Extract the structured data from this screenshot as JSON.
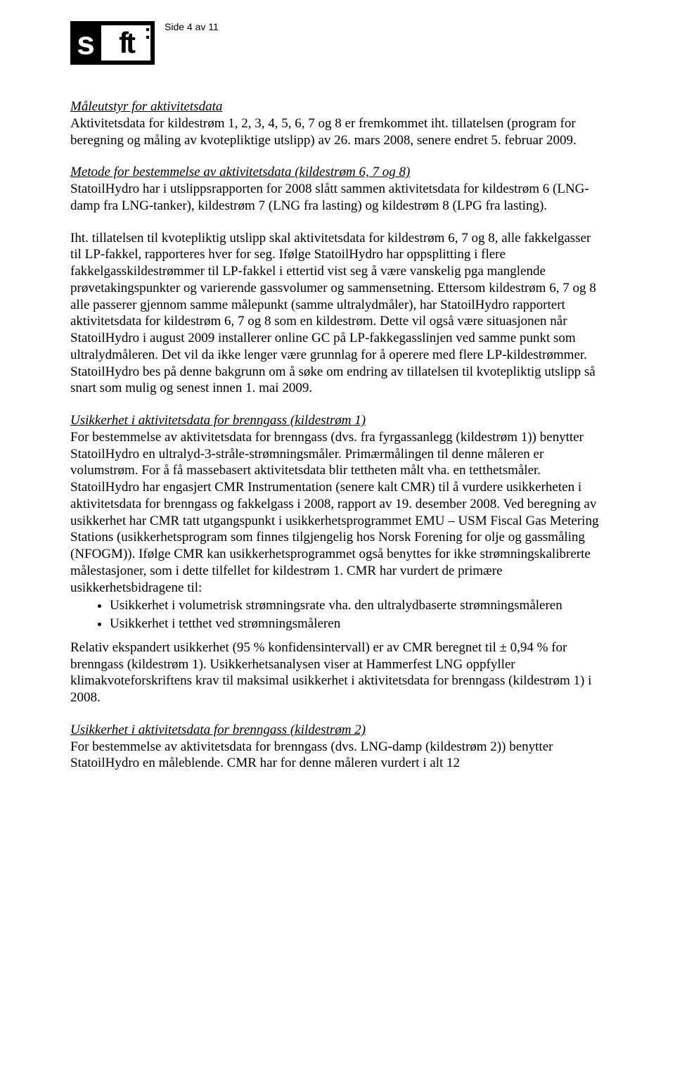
{
  "header": {
    "page_indicator": "Side 4 av 11",
    "logo_s": "s",
    "logo_ft": "ft",
    "logo_colon": ":"
  },
  "section1": {
    "title": "Måleutstyr for aktivitetsdata",
    "body": "Aktivitetsdata for kildestrøm 1, 2, 3, 4, 5, 6, 7 og 8 er fremkommet iht. tillatelsen (program for beregning og måling av kvotepliktige utslipp) av 26. mars 2008, senere endret 5. februar 2009."
  },
  "section2": {
    "title": "Metode for bestemmelse av aktivitetsdata (kildestrøm 6, 7 og 8)",
    "body1": "StatoilHydro har i utslippsrapporten for 2008 slått sammen aktivitetsdata for kildestrøm 6 (LNG-damp fra LNG-tanker), kildestrøm 7 (LNG fra lasting) og kildestrøm 8 (LPG fra lasting).",
    "body2": "Iht. tillatelsen til kvotepliktig utslipp skal aktivitetsdata for kildestrøm 6, 7 og 8, alle fakkelgasser til LP-fakkel, rapporteres hver for seg. Ifølge StatoilHydro har oppsplitting i flere fakkelgasskildestrømmer til LP-fakkel i ettertid vist seg å være vanskelig pga manglende prøvetakingspunkter og varierende gassvolumer og sammensetning. Ettersom kildestrøm 6, 7 og 8 alle passerer gjennom samme målepunkt (samme ultralydmåler), har StatoilHydro rapportert aktivitetsdata for kildestrøm 6, 7 og 8 som en kildestrøm. Dette vil også være situasjonen når StatoilHydro i august 2009 installerer online GC på LP-fakkegasslinjen ved samme punkt som ultralydmåleren. Det vil da ikke lenger være grunnlag for å operere med flere LP-kildestrømmer. StatoilHydro bes på denne bakgrunn om å søke om endring av tillatelsen til kvotepliktig utslipp så snart som mulig og senest innen 1. mai 2009."
  },
  "section3": {
    "title": "Usikkerhet i aktivitetsdata for brenngass (kildestrøm 1)",
    "body": "For bestemmelse av aktivitetsdata for brenngass (dvs. fra fyrgassanlegg (kildestrøm 1)) benytter StatoilHydro en ultralyd-3-stråle-strømningsmåler. Primærmålingen til denne måleren er volumstrøm. For å få massebasert aktivitetsdata blir tettheten målt vha. en tetthetsmåler. StatoilHydro har engasjert CMR Instrumentation (senere kalt CMR) til å vurdere usikkerheten i aktivitetsdata for brenngass og fakkelgass i 2008, rapport av 19. desember 2008. Ved beregning av usikkerhet har CMR tatt utgangspunkt i usikkerhetsprogrammet EMU – USM Fiscal Gas Metering Stations (usikkerhetsprogram som finnes tilgjengelig hos Norsk Forening for olje og gassmåling (NFOGM)). Ifølge CMR kan usikkerhetsprogrammet også benyttes for ikke strømningskalibrerte målestasjoner, som i dette tilfellet for kildestrøm 1. CMR har vurdert de primære usikkerhetsbidragene til:",
    "bullets": [
      "Usikkerhet i volumetrisk strømningsrate vha. den ultralydbaserte strømningsmåleren",
      "Usikkerhet i tetthet ved strømningsmåleren"
    ],
    "body2": "Relativ ekspandert usikkerhet (95 % konfidensintervall) er av CMR beregnet til ± 0,94 % for brenngass (kildestrøm 1). Usikkerhetsanalysen viser at Hammerfest LNG oppfyller klimakvoteforskriftens krav til maksimal usikkerhet i aktivitetsdata for brenngass (kildestrøm 1) i 2008."
  },
  "section4": {
    "title": "Usikkerhet i aktivitetsdata for brenngass (kildestrøm 2)",
    "body": "For bestemmelse av aktivitetsdata for brenngass (dvs. LNG-damp (kildestrøm 2)) benytter StatoilHydro en måleblende. CMR har for denne måleren vurdert i alt 12"
  }
}
